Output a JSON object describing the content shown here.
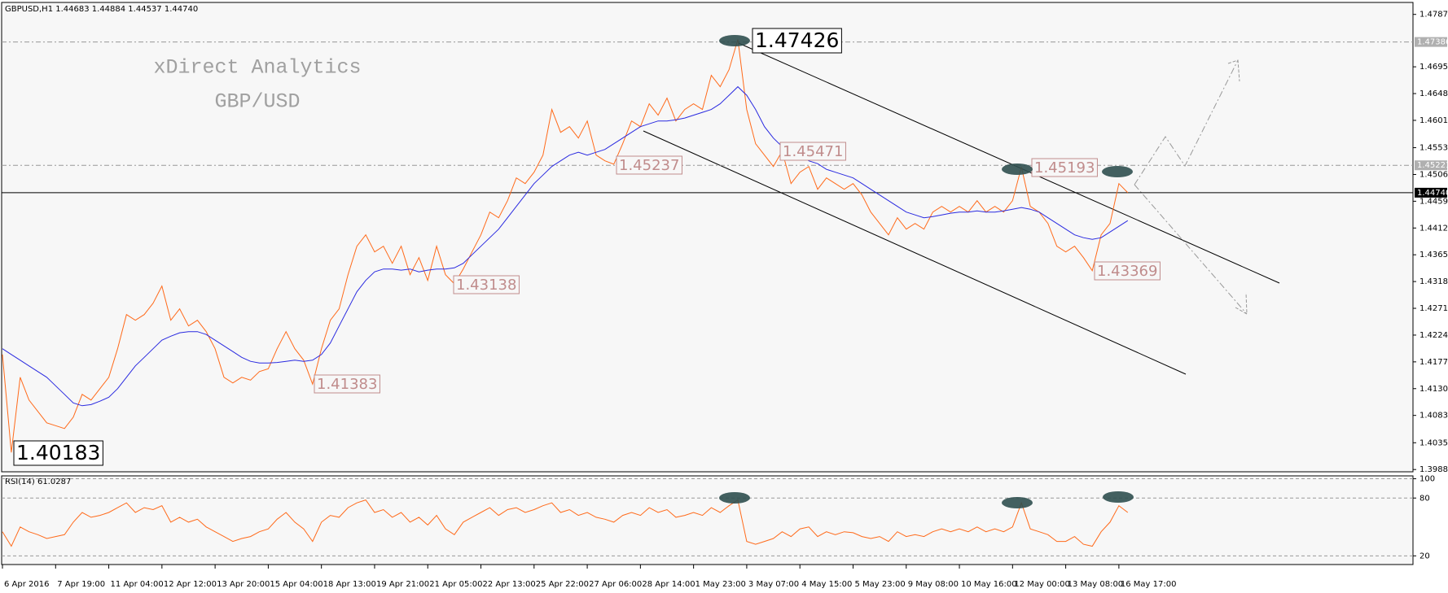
{
  "chart_data": [
    {
      "type": "line",
      "title": "GBPUSD,H1  1.44683 1.44884 1.44537 1.44740",
      "watermark": [
        "xDirect Analytics",
        "GBP/USD"
      ],
      "categories": [
        "6 Apr 2016",
        null,
        null,
        null,
        null,
        null,
        "7 Apr 19:00",
        null,
        null,
        null,
        null,
        null,
        "11 Apr 04:00",
        null,
        null,
        null,
        null,
        null,
        "12 Apr 12:00",
        null,
        null,
        null,
        null,
        null,
        "13 Apr 20:00",
        null,
        null,
        null,
        null,
        null,
        "15 Apr 04:00",
        null,
        null,
        null,
        null,
        null,
        "18 Apr 13:00",
        null,
        null,
        null,
        null,
        null,
        "19 Apr 21:00",
        null,
        null,
        null,
        null,
        null,
        "21 Apr 05:00",
        null,
        null,
        null,
        null,
        null,
        "22 Apr 13:00",
        null,
        null,
        null,
        null,
        null,
        "25 Apr 22:00",
        null,
        null,
        null,
        null,
        null,
        "27 Apr 06:00",
        null,
        null,
        null,
        null,
        null,
        "28 Apr 14:00",
        null,
        null,
        null,
        null,
        null,
        "1 May 23:00",
        null,
        null,
        null,
        null,
        null,
        "3 May 07:00",
        null,
        null,
        null,
        null,
        null,
        "4 May 15:00",
        null,
        null,
        null,
        null,
        null,
        "5 May 23:00",
        null,
        null,
        null,
        null,
        null,
        "9 May 08:00",
        null,
        null,
        null,
        null,
        null,
        "10 May 16:00",
        null,
        null,
        null,
        null,
        null,
        "12 May 00:00",
        null,
        null,
        null,
        null,
        null,
        "13 May 08:00",
        null,
        null,
        null,
        null,
        null,
        "16 May 17:00",
        null
      ],
      "series": [
        {
          "color": "#ff6a1a",
          "values": [
            1.419,
            1.4018,
            1.415,
            1.411,
            1.409,
            1.407,
            1.4065,
            1.406,
            1.408,
            1.412,
            1.411,
            1.413,
            1.415,
            1.42,
            1.426,
            1.425,
            1.426,
            1.428,
            1.431,
            1.425,
            1.427,
            1.424,
            1.425,
            1.423,
            1.42,
            1.415,
            1.414,
            1.415,
            1.4145,
            1.416,
            1.4165,
            1.42,
            1.423,
            1.42,
            1.418,
            1.4138,
            1.42,
            1.425,
            1.427,
            1.433,
            1.438,
            1.44,
            1.437,
            1.438,
            1.435,
            1.438,
            1.433,
            1.436,
            1.432,
            1.438,
            1.433,
            1.4314,
            1.434,
            1.437,
            1.44,
            1.444,
            1.443,
            1.446,
            1.45,
            1.449,
            1.451,
            1.454,
            1.462,
            1.458,
            1.459,
            1.457,
            1.46,
            1.454,
            1.453,
            1.4524,
            1.456,
            1.46,
            1.459,
            1.463,
            1.461,
            1.464,
            1.46,
            1.462,
            1.463,
            1.462,
            1.468,
            1.466,
            1.469,
            1.4743,
            1.462,
            1.456,
            1.454,
            1.452,
            1.4547,
            1.449,
            1.451,
            1.452,
            1.448,
            1.45,
            1.449,
            1.448,
            1.449,
            1.447,
            1.444,
            1.442,
            1.44,
            1.443,
            1.441,
            1.442,
            1.441,
            1.444,
            1.445,
            1.444,
            1.445,
            1.444,
            1.446,
            1.444,
            1.445,
            1.444,
            1.446,
            1.4519,
            1.445,
            1.444,
            1.442,
            1.438,
            1.437,
            1.438,
            1.436,
            1.4337,
            1.44,
            1.442,
            1.449,
            1.4474
          ]
        },
        {
          "color": "#2a2ae0",
          "values": [
            1.42,
            1.419,
            1.418,
            1.417,
            1.416,
            1.415,
            1.4135,
            1.412,
            1.4105,
            1.41,
            1.4102,
            1.4108,
            1.4115,
            1.413,
            1.415,
            1.417,
            1.4185,
            1.42,
            1.4215,
            1.4222,
            1.4228,
            1.423,
            1.423,
            1.4225,
            1.4215,
            1.4205,
            1.4195,
            1.4185,
            1.4178,
            1.4175,
            1.4175,
            1.4176,
            1.4178,
            1.418,
            1.4178,
            1.418,
            1.419,
            1.421,
            1.424,
            1.427,
            1.43,
            1.432,
            1.4335,
            1.434,
            1.434,
            1.4338,
            1.434,
            1.4335,
            1.4338,
            1.434,
            1.434,
            1.4342,
            1.435,
            1.4365,
            1.438,
            1.4395,
            1.441,
            1.443,
            1.445,
            1.447,
            1.449,
            1.4505,
            1.452,
            1.453,
            1.454,
            1.4545,
            1.454,
            1.4545,
            1.455,
            1.456,
            1.457,
            1.458,
            1.459,
            1.4595,
            1.46,
            1.46,
            1.4602,
            1.4605,
            1.461,
            1.4615,
            1.462,
            1.463,
            1.4645,
            1.466,
            1.4645,
            1.462,
            1.459,
            1.457,
            1.4555,
            1.4545,
            1.454,
            1.453,
            1.4525,
            1.4515,
            1.451,
            1.4505,
            1.45,
            1.449,
            1.448,
            1.447,
            1.446,
            1.445,
            1.444,
            1.4435,
            1.443,
            1.4432,
            1.4435,
            1.4438,
            1.444,
            1.444,
            1.4442,
            1.444,
            1.444,
            1.4442,
            1.4445,
            1.4448,
            1.4445,
            1.444,
            1.443,
            1.442,
            1.441,
            1.44,
            1.4395,
            1.4392,
            1.4395,
            1.4405,
            1.4415,
            1.4425
          ]
        }
      ],
      "ylim": [
        1.3984,
        1.4808
      ],
      "yticks": [
        {
          "value": 1.4787,
          "label": "1.47870"
        },
        {
          "value": 1.4695,
          "label": "1.46950"
        },
        {
          "value": 1.4648,
          "label": "1.46480"
        },
        {
          "value": 1.4601,
          "label": "1.46010"
        },
        {
          "value": 1.4553,
          "label": "1.45530"
        },
        {
          "value": 1.4506,
          "label": "1.45060"
        },
        {
          "value": 1.4459,
          "label": "1.44590"
        },
        {
          "value": 1.4412,
          "label": "1.44120"
        },
        {
          "value": 1.4365,
          "label": "1.43650"
        },
        {
          "value": 1.4318,
          "label": "1.43180"
        },
        {
          "value": 1.4271,
          "label": "1.42710"
        },
        {
          "value": 1.4224,
          "label": "1.42240"
        },
        {
          "value": 1.4177,
          "label": "1.41770"
        },
        {
          "value": 1.413,
          "label": "1.41300"
        },
        {
          "value": 1.4083,
          "label": "1.40830"
        },
        {
          "value": 1.4035,
          "label": "1.40350"
        },
        {
          "value": 1.3988,
          "label": "1.39880"
        }
      ],
      "hlines": [
        {
          "value": 1.47386,
          "style": "dashed"
        },
        {
          "value": 1.45221,
          "style": "dashed"
        },
        {
          "value": 1.4474,
          "label": "1.44740",
          "style": "solid"
        }
      ],
      "annotations": [
        "1.47426",
        "1.40183",
        "1.45237",
        "1.43138",
        "1.41383",
        "1.45471",
        "1.45193",
        "1.43369"
      ]
    },
    {
      "type": "line",
      "title": "RSI(14) 61.0287",
      "series": [
        {
          "color": "#ff6a1a",
          "values": [
            45,
            30,
            50,
            45,
            42,
            38,
            40,
            42,
            55,
            65,
            60,
            62,
            65,
            70,
            75,
            65,
            70,
            68,
            72,
            55,
            60,
            55,
            58,
            50,
            45,
            40,
            35,
            38,
            40,
            45,
            48,
            58,
            65,
            55,
            48,
            35,
            55,
            62,
            60,
            70,
            75,
            78,
            65,
            68,
            60,
            65,
            55,
            60,
            52,
            62,
            48,
            42,
            55,
            60,
            65,
            70,
            62,
            68,
            70,
            65,
            68,
            72,
            75,
            65,
            68,
            62,
            65,
            60,
            58,
            55,
            62,
            65,
            62,
            70,
            65,
            68,
            60,
            62,
            65,
            62,
            70,
            65,
            72,
            78,
            35,
            32,
            35,
            38,
            45,
            40,
            48,
            50,
            40,
            45,
            42,
            45,
            44,
            40,
            38,
            40,
            35,
            45,
            40,
            42,
            40,
            45,
            48,
            45,
            48,
            45,
            50,
            45,
            48,
            45,
            50,
            75,
            48,
            45,
            42,
            35,
            35,
            40,
            32,
            30,
            45,
            55,
            72,
            65
          ]
        }
      ],
      "ylim": [
        11,
        103
      ],
      "yticks": [
        100,
        80,
        20
      ],
      "grid": "dashed"
    }
  ]
}
